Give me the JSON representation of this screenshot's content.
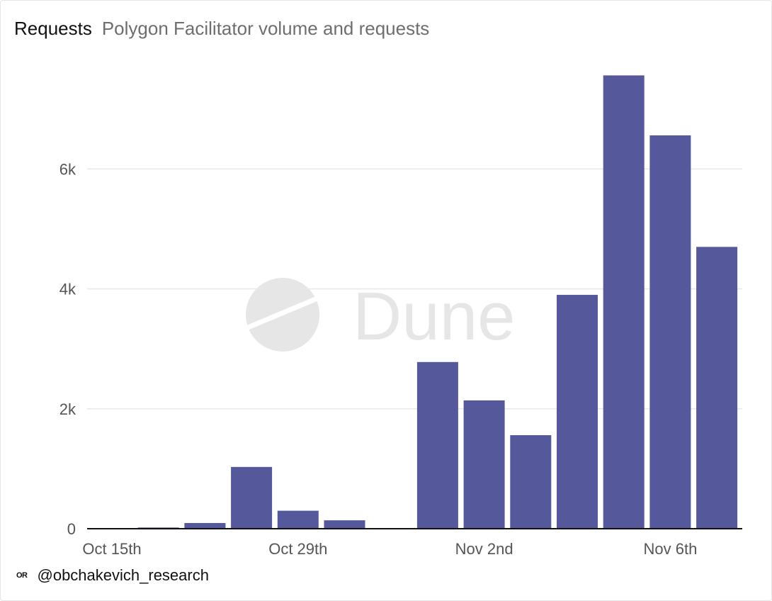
{
  "header": {
    "title": "Requests",
    "subtitle": "Polygon Facilitator volume and requests"
  },
  "watermark": {
    "text": "Dune",
    "color": "#e6e6e6"
  },
  "footer": {
    "logo_text": "OR",
    "handle": "@obchakevich_research"
  },
  "colors": {
    "bar": "#55589a",
    "grid": "#e8e8e8",
    "axis": "#111111",
    "tick_text": "#555555"
  },
  "chart_data": {
    "type": "bar",
    "title": "Requests",
    "subtitle": "Polygon Facilitator volume and requests",
    "xlabel": "",
    "ylabel": "",
    "ylim": [
      0,
      7600
    ],
    "grid": true,
    "legend": "none",
    "x_tick_labels": [
      "Oct 15th",
      "Oct 29th",
      "Nov 2nd",
      "Nov 6th"
    ],
    "x_tick_positions": [
      0,
      4,
      8,
      12
    ],
    "y_tick_labels": [
      "0",
      "2k",
      "4k",
      "6k"
    ],
    "y_tick_values": [
      0,
      2000,
      4000,
      6000
    ],
    "bars": [
      {
        "index": 0,
        "value": 0
      },
      {
        "index": 1,
        "value": 20
      },
      {
        "index": 2,
        "value": 95
      },
      {
        "index": 3,
        "value": 1030
      },
      {
        "index": 4,
        "value": 300
      },
      {
        "index": 5,
        "value": 140
      },
      {
        "index": 7,
        "value": 2780
      },
      {
        "index": 8,
        "value": 2140
      },
      {
        "index": 9,
        "value": 1560
      },
      {
        "index": 10,
        "value": 3900
      },
      {
        "index": 11,
        "value": 7560
      },
      {
        "index": 12,
        "value": 6560
      },
      {
        "index": 13,
        "value": 4700
      }
    ]
  }
}
